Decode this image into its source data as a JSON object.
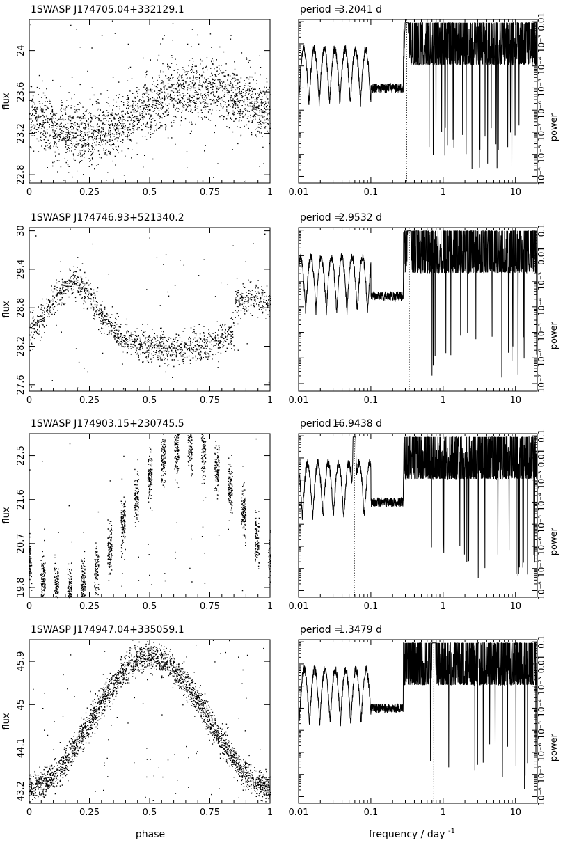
{
  "figure": {
    "phase_label": "phase",
    "freq_label_main": "frequency / day",
    "freq_label_sup": "-1",
    "flux_label": "flux",
    "power_label": "power",
    "period_prefix": "period =",
    "period_unit": "d"
  },
  "chart_data": [
    {
      "type": "scatter",
      "title": "1SWASP J174705.04+332129.1",
      "xlabel": "phase",
      "ylabel": "flux",
      "xlim": [
        0,
        1
      ],
      "ylim": [
        22.72,
        24.3
      ],
      "xticks": [
        "0",
        "0.25",
        "0.5",
        "0.75",
        "1"
      ],
      "yticks": [
        {
          "v": 22.8,
          "label": "22.8"
        },
        {
          "v": 23.2,
          "label": "23.2"
        },
        {
          "v": 23.6,
          "label": "23.6"
        },
        {
          "v": 24.0,
          "label": "24"
        }
      ],
      "model": {
        "kind": "sinusoid",
        "mean": 23.42,
        "amp": 0.22,
        "peak_phase": 0.72,
        "scatter": 0.3,
        "n": 2400
      },
      "periodogram": {
        "period_value": "3.2041",
        "peak_frequency": 0.312,
        "y_scale": "log",
        "y_tick_labels": [
          "10⁻⁹",
          "10⁻⁸",
          "10⁻⁷",
          "10⁻⁶",
          "10⁻⁵",
          "10⁻⁴",
          "10⁻³",
          "0.01"
        ],
        "ylabel": "power",
        "xlim": [
          0.01,
          20
        ],
        "xticks": [
          "0.01",
          "0.1",
          "1",
          "10"
        ],
        "xlabel": "frequency / day⁻¹"
      }
    },
    {
      "type": "scatter",
      "title": "1SWASP J174746.93+521340.2",
      "xlabel": "phase",
      "ylabel": "flux",
      "xlim": [
        0,
        1
      ],
      "ylim": [
        27.5,
        30.05
      ],
      "xticks": [
        "0",
        "0.25",
        "0.5",
        "0.75",
        "1"
      ],
      "yticks": [
        {
          "v": 27.6,
          "label": "27.6"
        },
        {
          "v": 28.2,
          "label": "28.2"
        },
        {
          "v": 28.8,
          "label": "28.8"
        },
        {
          "v": 29.4,
          "label": "29.4"
        },
        {
          "v": 30.0,
          "label": "30"
        }
      ],
      "model": {
        "kind": "double",
        "mean": 28.75,
        "amp": 0.95,
        "peak_phase": 0.18,
        "scatter": 0.25,
        "n": 1500
      },
      "periodogram": {
        "period_value": "2.9532",
        "peak_frequency": 0.339,
        "y_scale": "log",
        "y_tick_labels": [
          "10⁻⁷",
          "10⁻⁶",
          "10⁻⁵",
          "10⁻⁴",
          "10⁻³",
          "0.01",
          "0.1"
        ],
        "ylabel": "power",
        "xlim": [
          0.01,
          20
        ],
        "xticks": [
          "0.01",
          "0.1",
          "1",
          "10"
        ],
        "xlabel": "frequency / day⁻¹"
      }
    },
    {
      "type": "scatter",
      "title": "1SWASP J174903.15+230745.5",
      "xlabel": "phase",
      "ylabel": "flux",
      "xlim": [
        0,
        1
      ],
      "ylim": [
        19.6,
        22.95
      ],
      "xticks": [
        "0",
        "0.25",
        "0.5",
        "0.75",
        "1"
      ],
      "yticks": [
        {
          "v": 19.8,
          "label": "19.8"
        },
        {
          "v": 20.7,
          "label": "20.7"
        },
        {
          "v": 21.6,
          "label": "21.6"
        },
        {
          "v": 22.5,
          "label": "22.5"
        }
      ],
      "model": {
        "kind": "clumped",
        "mean": 21.22,
        "amp": 1.48,
        "peak_phase": 0.65,
        "scatter": 0.5,
        "n": 1900
      },
      "periodogram": {
        "period_value": "16.9438",
        "peak_frequency": 0.059,
        "y_scale": "log",
        "y_tick_labels": [
          "10⁻⁸",
          "10⁻⁷",
          "10⁻⁶",
          "10⁻⁵",
          "10⁻⁴",
          "10⁻³",
          "0.01",
          "0.1"
        ],
        "ylabel": "power",
        "xlim": [
          0.01,
          20
        ],
        "xticks": [
          "0.01",
          "0.1",
          "1",
          "10"
        ],
        "xlabel": "frequency / day⁻¹"
      }
    },
    {
      "type": "scatter",
      "title": "1SWASP J174947.04+335059.1",
      "xlabel": "phase",
      "ylabel": "flux",
      "xlim": [
        0,
        1
      ],
      "ylim": [
        42.95,
        46.35
      ],
      "xticks": [
        "0",
        "0.25",
        "0.5",
        "0.75",
        "1"
      ],
      "yticks": [
        {
          "v": 43.2,
          "label": "43.2"
        },
        {
          "v": 44.1,
          "label": "44.1"
        },
        {
          "v": 45.0,
          "label": "45"
        },
        {
          "v": 45.9,
          "label": "45.9"
        }
      ],
      "model": {
        "kind": "sinusoid",
        "mean": 44.65,
        "amp": 1.35,
        "peak_phase": 0.5,
        "scatter": 0.3,
        "n": 2600
      },
      "periodogram": {
        "period_value": "1.3479",
        "peak_frequency": 0.742,
        "y_scale": "log",
        "y_tick_labels": [
          "10⁻⁸",
          "10⁻⁷",
          "10⁻⁶",
          "10⁻⁵",
          "10⁻⁴",
          "10⁻³",
          "0.01",
          "0.1"
        ],
        "ylabel": "power",
        "xlim": [
          0.01,
          20
        ],
        "xticks": [
          "0.01",
          "0.1",
          "1",
          "10"
        ],
        "xlabel": "frequency / day⁻¹"
      }
    }
  ]
}
